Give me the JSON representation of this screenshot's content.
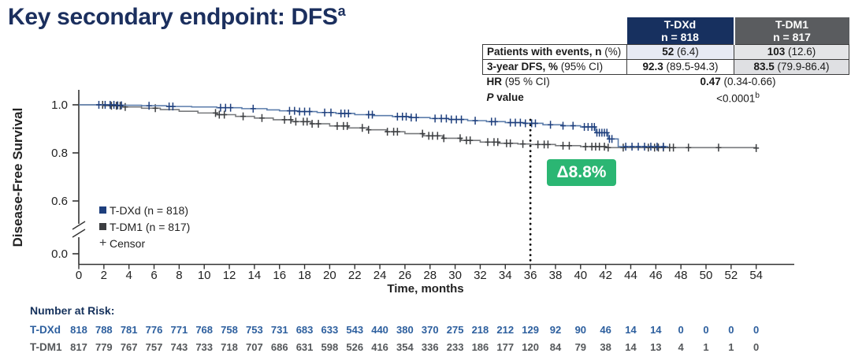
{
  "title": {
    "text": "Key secondary endpoint: DFS",
    "sup": "a"
  },
  "stats_table": {
    "columns": [
      {
        "name": "T-DXd",
        "n": "n = 818"
      },
      {
        "name": "T-DM1",
        "n": "n = 817"
      }
    ],
    "rows": [
      {
        "label_bold": "Patients with events, n",
        "label_rest": " (%)",
        "v1_bold": "52",
        "v1_rest": " (6.4)",
        "v2_bold": "103",
        "v2_rest": " (12.6)"
      },
      {
        "label_bold": "3-year DFS, %",
        "label_rest": " (95% CI)",
        "v1_bold": "92.3",
        "v1_rest": " (89.5-94.3)",
        "v2_bold": "83.5",
        "v2_rest": " (79.9-86.4)"
      }
    ],
    "hr_row": {
      "label_bold": "HR",
      "label_rest": " (95 % CI)",
      "value_bold": "0.47",
      "value_rest": " (0.34-0.66)"
    },
    "p_row": {
      "label_italic": "P",
      "label_rest": " value",
      "value": "<0.0001",
      "sup": "b"
    }
  },
  "chart_data": {
    "type": "line",
    "subtype": "kaplan-meier-step",
    "title": "",
    "xlabel": "Time, months",
    "ylabel": "Disease-Free Survival",
    "x_ticks": [
      0,
      2,
      4,
      6,
      8,
      10,
      12,
      14,
      16,
      18,
      20,
      22,
      24,
      26,
      28,
      30,
      32,
      34,
      36,
      38,
      40,
      42,
      44,
      46,
      48,
      50,
      52,
      54
    ],
    "y_ticks": [
      1.0,
      0.8,
      0.6,
      0.0
    ],
    "y_axis_break_between": [
      0.6,
      0.0
    ],
    "xlim": [
      0,
      54
    ],
    "grid": false,
    "legend_position": "inside-left",
    "censor_symbol": "+",
    "censor_legend_label": "Censor",
    "dashed_line_x": 36,
    "annotation": {
      "label": "Δ8.8%",
      "bg_color": "#2bb673",
      "text_color": "#ffffff",
      "at_month": 36
    },
    "key_values": {
      "t_dxd_3yr_dfs_pct": 92.3,
      "t_dm1_3yr_dfs_pct": 83.5,
      "delta_pct": 8.8
    },
    "series": [
      {
        "name": "T-DXd (n = 818)",
        "line_color": "#5b7cab",
        "mark_color": "#1e3f7d",
        "steps": [
          [
            0,
            1.0
          ],
          [
            3,
            0.998
          ],
          [
            5,
            0.996
          ],
          [
            7,
            0.993
          ],
          [
            9,
            0.991
          ],
          [
            11,
            0.988
          ],
          [
            13,
            0.984
          ],
          [
            15,
            0.979
          ],
          [
            16,
            0.975
          ],
          [
            17.5,
            0.972
          ],
          [
            19,
            0.968
          ],
          [
            20.5,
            0.964
          ],
          [
            22,
            0.959
          ],
          [
            23.5,
            0.955
          ],
          [
            25,
            0.951
          ],
          [
            26.5,
            0.947
          ],
          [
            28,
            0.943
          ],
          [
            29.5,
            0.939
          ],
          [
            31,
            0.934
          ],
          [
            32.5,
            0.93
          ],
          [
            34,
            0.926
          ],
          [
            35.5,
            0.923
          ],
          [
            37,
            0.917
          ],
          [
            38.5,
            0.913
          ],
          [
            40,
            0.908
          ],
          [
            41.2,
            0.884
          ],
          [
            42.2,
            0.858
          ],
          [
            43,
            0.826
          ],
          [
            47,
            0.826
          ]
        ],
        "censor_months": [
          1.6,
          2.1,
          2.5,
          2.8,
          3.1,
          3.4,
          5.6,
          7.2,
          7.5,
          11.3,
          11.7,
          12.1,
          13.9,
          16.8,
          17.2,
          17.6,
          18.0,
          18.4,
          19.6,
          20.1,
          20.9,
          21.2,
          21.5,
          23.1,
          23.4,
          25.4,
          25.8,
          26.1,
          26.5,
          26.9,
          28.4,
          28.9,
          29.3,
          29.7,
          30.1,
          30.5,
          31.6,
          32.9,
          33.2,
          34.4,
          34.8,
          35.2,
          35.6,
          36.1,
          36.4,
          37.6,
          38.6,
          39.4,
          40.3,
          40.6,
          40.9,
          41.1,
          41.3,
          41.5,
          41.7,
          41.9,
          42.1,
          42.3,
          42.5,
          43.6,
          44.1,
          44.6,
          45.1,
          45.6,
          46.1,
          46.6
        ]
      },
      {
        "name": "T-DM1 (n = 817)",
        "line_color": "#77797c",
        "mark_color": "#3c3e41",
        "steps": [
          [
            0,
            1.0
          ],
          [
            2,
            0.996
          ],
          [
            3.5,
            0.991
          ],
          [
            5,
            0.986
          ],
          [
            6.5,
            0.98
          ],
          [
            8,
            0.973
          ],
          [
            9.5,
            0.966
          ],
          [
            11,
            0.959
          ],
          [
            12.5,
            0.952
          ],
          [
            14,
            0.945
          ],
          [
            15.5,
            0.938
          ],
          [
            17,
            0.93
          ],
          [
            18.5,
            0.921
          ],
          [
            20,
            0.912
          ],
          [
            21.5,
            0.904
          ],
          [
            23,
            0.896
          ],
          [
            24.5,
            0.888
          ],
          [
            26,
            0.88
          ],
          [
            27.5,
            0.871
          ],
          [
            29,
            0.861
          ],
          [
            30.5,
            0.852
          ],
          [
            32,
            0.845
          ],
          [
            33.5,
            0.84
          ],
          [
            35,
            0.837
          ],
          [
            36,
            0.835
          ],
          [
            38,
            0.83
          ],
          [
            40,
            0.826
          ],
          [
            42,
            0.822
          ],
          [
            54,
            0.82
          ]
        ],
        "censor_months": [
          1.9,
          2.6,
          3.0,
          3.3,
          3.7,
          6.1,
          10.9,
          11.2,
          11.6,
          13.1,
          14.6,
          16.4,
          16.9,
          17.3,
          17.9,
          18.2,
          18.6,
          19.1,
          20.6,
          21.1,
          21.4,
          22.6,
          23.1,
          24.6,
          25.1,
          25.4,
          27.4,
          27.9,
          28.2,
          28.6,
          29.1,
          30.4,
          30.9,
          31.2,
          32.6,
          33.1,
          33.4,
          34.1,
          34.4,
          35.4,
          36.6,
          37.1,
          37.4,
          38.6,
          39.1,
          40.4,
          40.9,
          41.2,
          41.5,
          41.9,
          42.2,
          43.4,
          45.4,
          45.9,
          46.2,
          46.6,
          47.1,
          47.4,
          48.6,
          51.0,
          54.0
        ]
      }
    ]
  },
  "number_at_risk": {
    "heading": "Number at Risk:",
    "rows": [
      {
        "label": "T-DXd",
        "color": "#2d5f9e",
        "values": [
          818,
          788,
          781,
          776,
          771,
          768,
          758,
          753,
          731,
          683,
          633,
          543,
          440,
          380,
          370,
          275,
          218,
          212,
          129,
          92,
          90,
          46,
          14,
          14,
          0,
          0,
          0,
          0
        ]
      },
      {
        "label": "T-DM1",
        "color": "#55585b",
        "values": [
          817,
          779,
          767,
          757,
          743,
          733,
          718,
          707,
          686,
          631,
          598,
          526,
          416,
          354,
          336,
          233,
          186,
          177,
          120,
          84,
          79,
          38,
          14,
          13,
          4,
          1,
          1,
          0
        ]
      }
    ]
  }
}
